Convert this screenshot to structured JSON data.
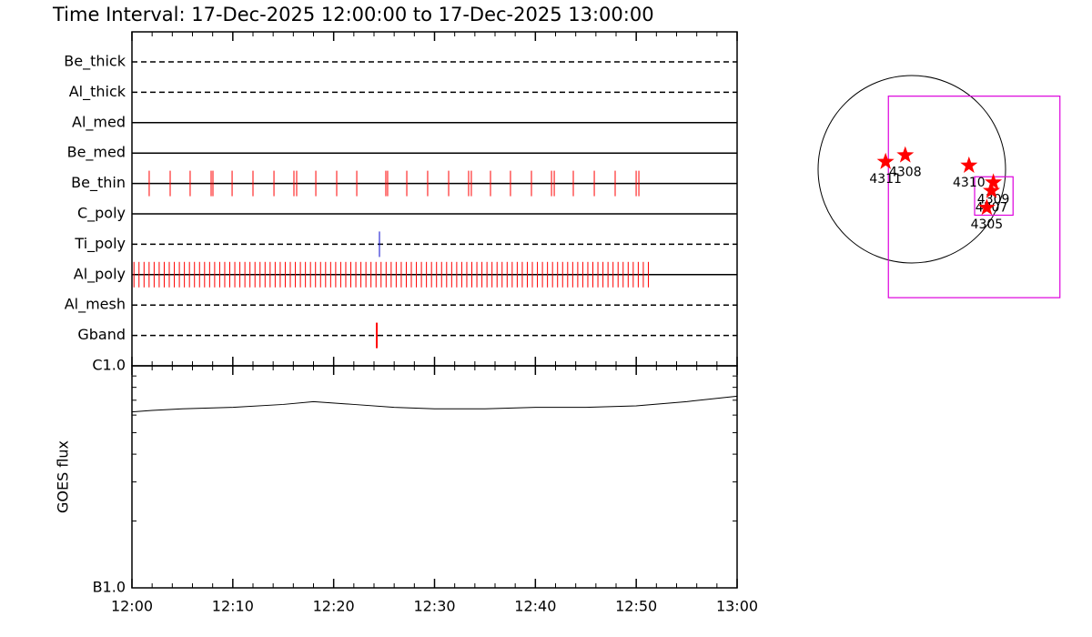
{
  "chart_data": [
    {
      "type": "timeline",
      "title": "Time Interval: 17-Dec-2025 12:00:00 to 17-Dec-2025 13:00:00",
      "xlim": [
        0,
        60
      ],
      "series": [
        {
          "name": "Be_thick",
          "line": "dashed",
          "events": []
        },
        {
          "name": "Al_thick",
          "line": "dashed",
          "events": []
        },
        {
          "name": "Al_med",
          "line": "solid",
          "events": []
        },
        {
          "name": "Be_med",
          "line": "solid",
          "events": []
        },
        {
          "name": "Be_thin",
          "line": "solid",
          "color": "#ff0000",
          "events": [
            1.71,
            3.79,
            5.77,
            7.85,
            8.03,
            9.93,
            12.0,
            14.08,
            16.06,
            16.33,
            18.23,
            20.3,
            22.29,
            25.17,
            25.35,
            27.25,
            29.32,
            31.4,
            33.38,
            33.65,
            35.55,
            37.53,
            39.61,
            41.6,
            41.87,
            43.76,
            45.84,
            47.91,
            49.99,
            50.26
          ]
        },
        {
          "name": "C_poly",
          "line": "solid",
          "events": []
        },
        {
          "name": "Ti_poly",
          "line": "dashed",
          "color": "#0000cc",
          "events": [
            24.54
          ]
        },
        {
          "name": "Al_poly",
          "line": "solid",
          "color": "#ff0000",
          "events": [
            0.2,
            0.7,
            1.2,
            1.7,
            2.2,
            2.7,
            3.2,
            3.7,
            4.2,
            4.7,
            5.2,
            5.7,
            6.2,
            6.7,
            7.2,
            7.7,
            8.2,
            8.7,
            9.2,
            9.7,
            10.2,
            10.7,
            11.2,
            11.7,
            12.2,
            12.7,
            13.2,
            13.7,
            14.2,
            14.7,
            15.2,
            15.7,
            16.2,
            16.7,
            17.2,
            17.7,
            18.2,
            18.7,
            19.2,
            19.7,
            20.2,
            20.7,
            21.2,
            21.7,
            22.2,
            22.7,
            23.2,
            23.7,
            24.2,
            24.7,
            25.2,
            25.7,
            26.2,
            26.7,
            27.2,
            27.7,
            28.2,
            28.7,
            29.2,
            29.7,
            30.2,
            30.7,
            31.2,
            31.7,
            32.2,
            32.7,
            33.2,
            33.7,
            34.2,
            34.7,
            35.2,
            35.7,
            36.2,
            36.7,
            37.2,
            37.7,
            38.2,
            38.7,
            39.2,
            39.7,
            40.2,
            40.7,
            41.2,
            41.7,
            42.2,
            42.7,
            43.2,
            43.7,
            44.2,
            44.7,
            45.2,
            45.7,
            46.2,
            46.7,
            47.2,
            47.7,
            48.2,
            48.7,
            49.2,
            49.7,
            50.2,
            50.7,
            51.2
          ]
        },
        {
          "name": "Al_mesh",
          "line": "dashed",
          "events": []
        },
        {
          "name": "Gband",
          "line": "dashed",
          "color": "#ff0000",
          "width": 2,
          "events": [
            24.27
          ]
        }
      ]
    },
    {
      "type": "line",
      "ylabel": "GOES flux",
      "log": true,
      "xlim": [
        0,
        60
      ],
      "xticks": [
        {
          "value": 0,
          "label": "12:00"
        },
        {
          "value": 10,
          "label": "12:10"
        },
        {
          "value": 20,
          "label": "12:20"
        },
        {
          "value": 30,
          "label": "12:30"
        },
        {
          "value": 40,
          "label": "12:40"
        },
        {
          "value": 50,
          "label": "12:50"
        },
        {
          "value": 60,
          "label": "13:00"
        }
      ],
      "ylim": [
        1e-07,
        1e-06
      ],
      "yticks": [
        {
          "value": 1e-07,
          "label": "B1.0"
        },
        {
          "value": 1e-06,
          "label": "C1.0"
        }
      ],
      "color": "#000000",
      "x": [
        0,
        2,
        5,
        10,
        15,
        18,
        22,
        26,
        30,
        35,
        40,
        45,
        50,
        55,
        60
      ],
      "values": [
        6.2e-07,
        6.3e-07,
        6.4e-07,
        6.5e-07,
        6.7e-07,
        6.9e-07,
        6.7e-07,
        6.5e-07,
        6.4e-07,
        6.4e-07,
        6.5e-07,
        6.5e-07,
        6.6e-07,
        6.9e-07,
        7.3e-07
      ]
    },
    {
      "type": "scatter",
      "color": "#ff0000",
      "points": [
        {
          "label": "4311",
          "x": -0.28,
          "y": 0.08
        },
        {
          "label": "4308",
          "x": -0.07,
          "y": 0.15
        },
        {
          "label": "4310",
          "x": 0.61,
          "y": 0.04
        },
        {
          "label": "4309",
          "x": 0.87,
          "y": -0.14
        },
        {
          "label": "4307",
          "x": 0.85,
          "y": -0.23
        },
        {
          "label": "4305",
          "x": 0.8,
          "y": -0.41
        }
      ],
      "region_color": "#dd00dd",
      "regions": [
        {
          "x": [
            -0.25,
            1.58
          ],
          "y": [
            0.78,
            -1.37
          ]
        },
        {
          "x": [
            0.67,
            1.08
          ],
          "y": [
            -0.08,
            -0.49
          ]
        }
      ]
    }
  ]
}
